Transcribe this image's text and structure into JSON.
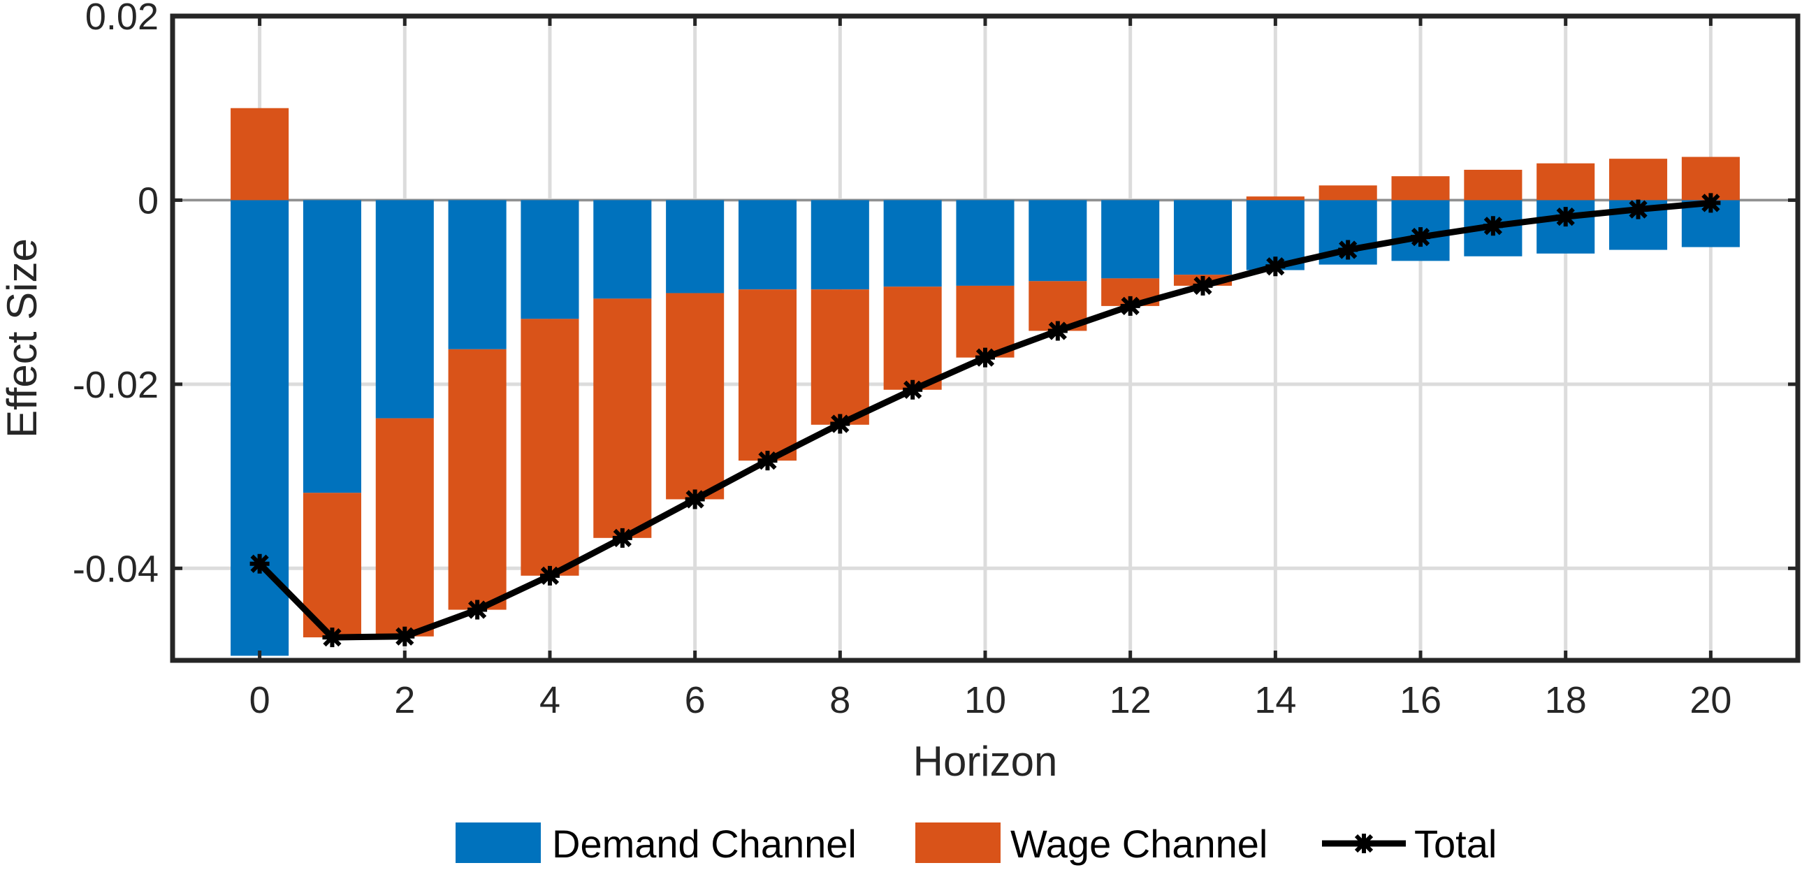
{
  "chart_data": {
    "type": "bar",
    "stacked": true,
    "title": "",
    "xlabel": "Horizon",
    "ylabel": "Effect Size",
    "x": [
      0,
      1,
      2,
      3,
      4,
      5,
      6,
      7,
      8,
      9,
      10,
      11,
      12,
      13,
      14,
      15,
      16,
      17,
      18,
      19,
      20
    ],
    "xticks": [
      0,
      2,
      4,
      6,
      8,
      10,
      12,
      14,
      16,
      18,
      20
    ],
    "yticks": [
      0.02,
      0,
      -0.02,
      -0.04
    ],
    "ytick_labels": [
      "0.02",
      "0",
      "-0.02",
      "-0.04"
    ],
    "xlim": [
      -1.2,
      21.2
    ],
    "ylim": [
      -0.05,
      0.02
    ],
    "grid": true,
    "legend_position": "bottom",
    "series": [
      {
        "name": "Demand Channel",
        "kind": "bar",
        "color": "#0072BD",
        "values": [
          -0.0495,
          -0.0318,
          -0.0237,
          -0.0162,
          -0.0129,
          -0.0107,
          -0.0101,
          -0.0097,
          -0.0097,
          -0.0094,
          -0.0093,
          -0.0088,
          -0.0085,
          -0.0081,
          -0.0076,
          -0.007,
          -0.0066,
          -0.0061,
          -0.0058,
          -0.0054,
          -0.0051
        ]
      },
      {
        "name": "Wage Channel",
        "kind": "bar",
        "color": "#D95319",
        "values": [
          0.01,
          -0.0157,
          -0.0237,
          -0.0283,
          -0.0279,
          -0.026,
          -0.0224,
          -0.0186,
          -0.0147,
          -0.0112,
          -0.0078,
          -0.0054,
          -0.003,
          -0.0012,
          0.0004,
          0.0016,
          0.0026,
          0.0033,
          0.004,
          0.0045,
          0.0047
        ]
      },
      {
        "name": "Total",
        "kind": "line",
        "color": "#000000",
        "values": [
          -0.0395,
          -0.0475,
          -0.0474,
          -0.0445,
          -0.0408,
          -0.0367,
          -0.0325,
          -0.0283,
          -0.0243,
          -0.0206,
          -0.0171,
          -0.0142,
          -0.0115,
          -0.0093,
          -0.0072,
          -0.0054,
          -0.004,
          -0.0028,
          -0.0018,
          -0.001,
          -0.0003
        ]
      }
    ]
  }
}
